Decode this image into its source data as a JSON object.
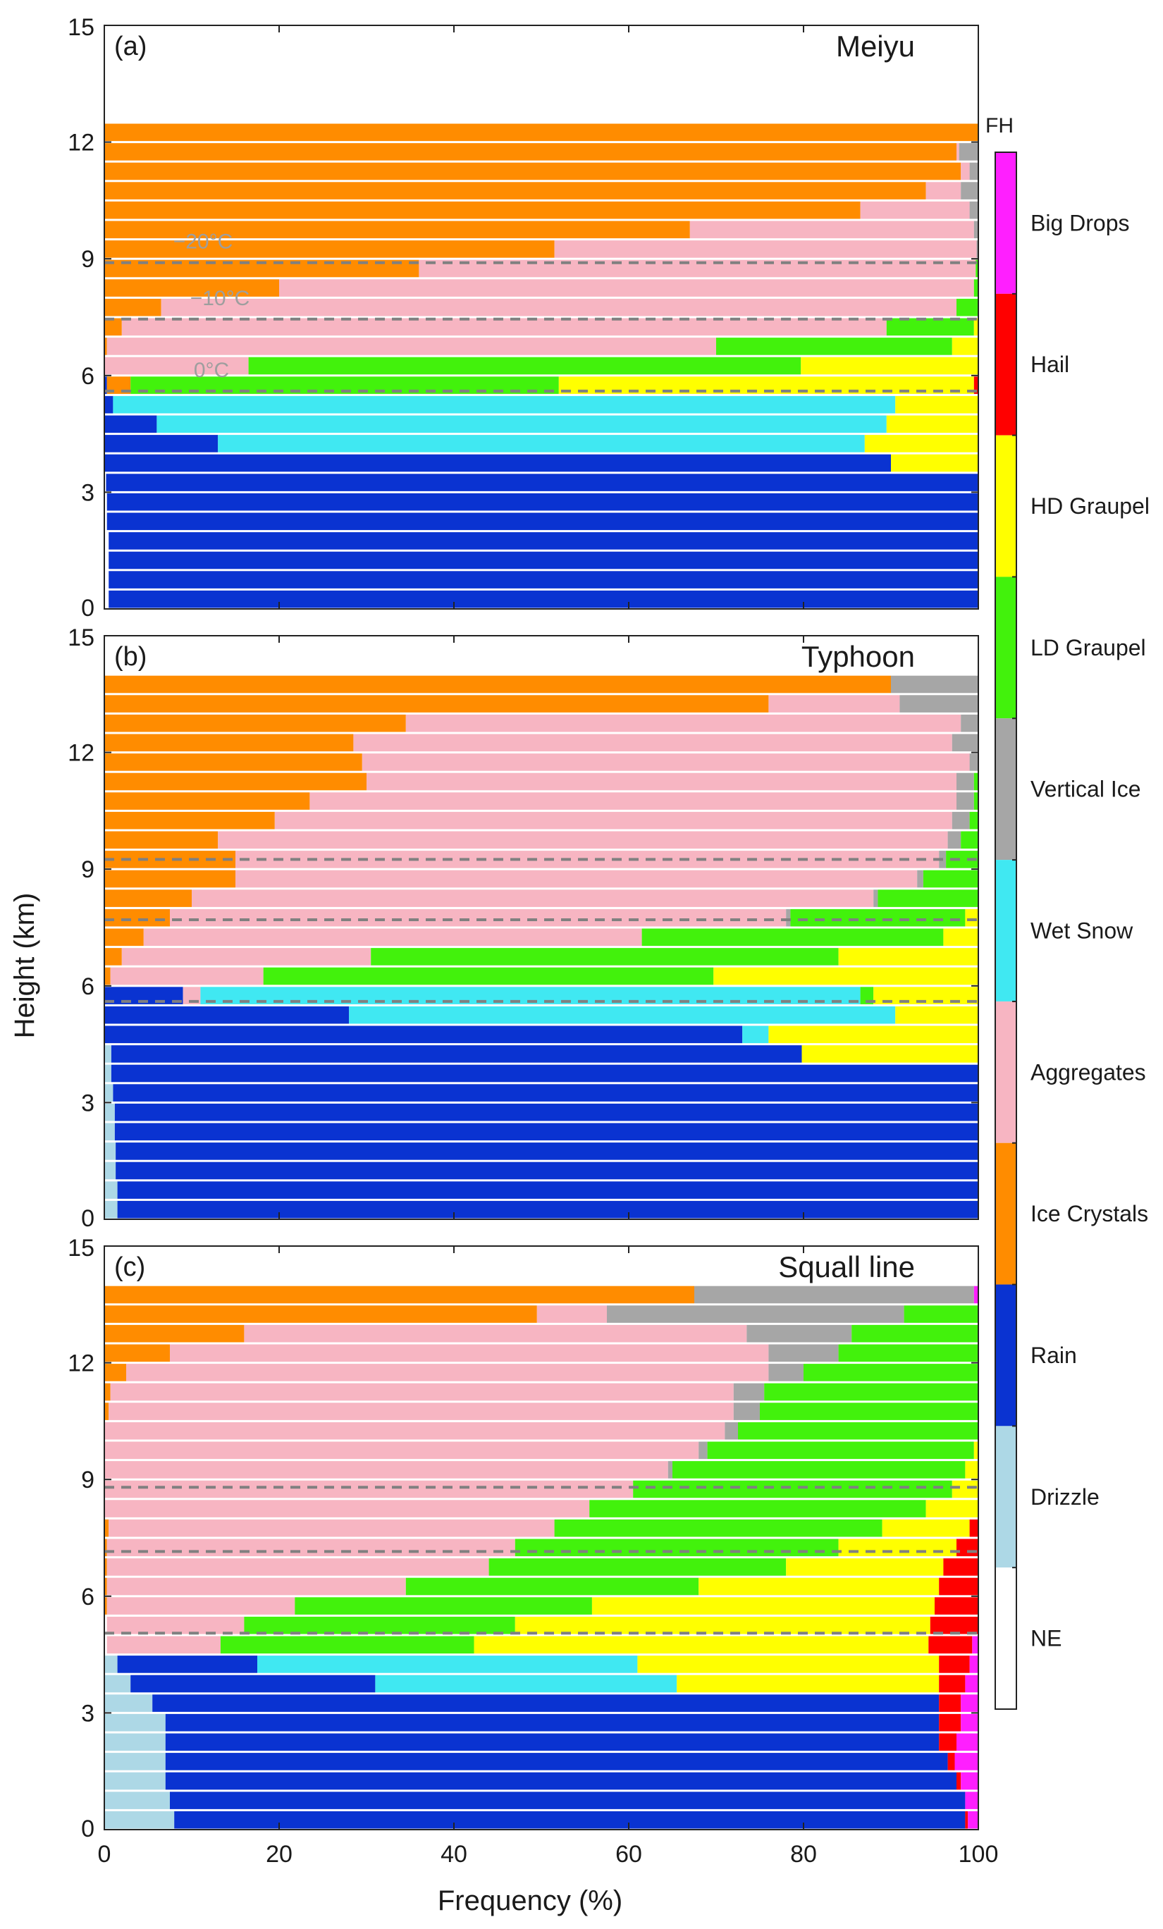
{
  "figure": {
    "ylabel": "Height (km)",
    "xlabel": "Frequency (%)",
    "fh_label": "FH"
  },
  "colors": {
    "NE": "#ffffff",
    "Drizzle": "#add8e6",
    "Rain": "#0a33d1",
    "Ice Crystals": "#ff8c00",
    "Aggregates": "#f7b5c2",
    "Wet Snow": "#40e8f2",
    "Vertical Ice": "#a6a6a6",
    "LD Graupel": "#42f20c",
    "HD Graupel": "#ffff00",
    "Hail": "#ff0000",
    "Big Drops": "#ff1fff"
  },
  "legend": [
    "Big Drops",
    "Hail",
    "HD Graupel",
    "LD Graupel",
    "Vertical Ice",
    "Wet Snow",
    "Aggregates",
    "Ice Crystals",
    "Rain",
    "Drizzle",
    "NE"
  ],
  "axes": {
    "x_ticks": [
      "0",
      "20",
      "40",
      "60",
      "80",
      "100"
    ],
    "y_ticks": [
      "0",
      "3",
      "6",
      "9",
      "12",
      "15"
    ],
    "xlim": [
      0,
      100
    ],
    "ylim": [
      0,
      15
    ]
  },
  "chart_data": [
    {
      "type": "bar",
      "orientation": "horizontal-stacked",
      "panel_label": "(a)",
      "title": "Meiyu",
      "layer_km": 0.5,
      "category_order": [
        "NE",
        "Drizzle",
        "Rain",
        "Ice Crystals",
        "Aggregates",
        "Wet Snow",
        "Vertical Ice",
        "LD Graupel",
        "HD Graupel",
        "Hail",
        "Big Drops"
      ],
      "isotherm_labels": [
        "−20°C",
        "−10°C",
        "0°C"
      ],
      "isotherm_heights_km": [
        8.9,
        7.45,
        5.6
      ],
      "layers": [
        {
          "z": 0.25,
          "NE": 0.5,
          "Rain": 99.5
        },
        {
          "z": 0.75,
          "NE": 0.5,
          "Rain": 99.5
        },
        {
          "z": 1.25,
          "NE": 0.5,
          "Rain": 99.5
        },
        {
          "z": 1.75,
          "NE": 0.5,
          "Rain": 99.5
        },
        {
          "z": 2.25,
          "NE": 0.3,
          "Rain": 99.7
        },
        {
          "z": 2.75,
          "NE": 0.3,
          "Rain": 99.7
        },
        {
          "z": 3.25,
          "NE": 0.2,
          "Rain": 99.8
        },
        {
          "z": 3.75,
          "Rain": 90.0,
          "HD Graupel": 10.0
        },
        {
          "z": 4.25,
          "Rain": 13.0,
          "Wet Snow": 74.0,
          "HD Graupel": 13.0
        },
        {
          "z": 4.75,
          "Rain": 6.0,
          "Wet Snow": 83.5,
          "HD Graupel": 10.5
        },
        {
          "z": 5.25,
          "Rain": 1.0,
          "Wet Snow": 89.5,
          "HD Graupel": 9.5
        },
        {
          "z": 5.75,
          "Rain": 0.3,
          "Ice Crystals": 2.7,
          "LD Graupel": 49.0,
          "HD Graupel": 47.5,
          "Hail": 0.5
        },
        {
          "z": 6.25,
          "Aggregates": 16.5,
          "LD Graupel": 63.2,
          "HD Graupel": 20.3
        },
        {
          "z": 6.75,
          "Ice Crystals": 0.3,
          "Aggregates": 69.7,
          "LD Graupel": 27.0,
          "HD Graupel": 3.0
        },
        {
          "z": 7.25,
          "Ice Crystals": 2.0,
          "Aggregates": 87.5,
          "LD Graupel": 10.0,
          "HD Graupel": 0.5
        },
        {
          "z": 7.75,
          "Ice Crystals": 6.5,
          "Aggregates": 91.0,
          "LD Graupel": 2.5
        },
        {
          "z": 8.25,
          "Ice Crystals": 20.0,
          "Aggregates": 79.5,
          "LD Graupel": 0.5
        },
        {
          "z": 8.75,
          "Ice Crystals": 36.0,
          "Aggregates": 63.7,
          "LD Graupel": 0.3
        },
        {
          "z": 9.25,
          "Ice Crystals": 51.5,
          "Aggregates": 48.3,
          "Vertical Ice": 0.2
        },
        {
          "z": 9.75,
          "Ice Crystals": 67.0,
          "Aggregates": 32.5,
          "Vertical Ice": 0.5
        },
        {
          "z": 10.25,
          "Ice Crystals": 86.5,
          "Aggregates": 12.5,
          "Vertical Ice": 1.0
        },
        {
          "z": 10.75,
          "Ice Crystals": 94.0,
          "Aggregates": 4.0,
          "Vertical Ice": 2.0
        },
        {
          "z": 11.25,
          "Ice Crystals": 98.0,
          "Aggregates": 1.0,
          "Vertical Ice": 1.0
        },
        {
          "z": 11.75,
          "Ice Crystals": 97.5,
          "Aggregates": 0.3,
          "Vertical Ice": 2.2
        },
        {
          "z": 12.25,
          "Ice Crystals": 100
        }
      ]
    },
    {
      "type": "bar",
      "orientation": "horizontal-stacked",
      "panel_label": "(b)",
      "title": "Typhoon",
      "layer_km": 0.5,
      "category_order": [
        "NE",
        "Drizzle",
        "Rain",
        "Ice Crystals",
        "Aggregates",
        "Wet Snow",
        "Vertical Ice",
        "LD Graupel",
        "HD Graupel",
        "Hail",
        "Big Drops"
      ],
      "isotherm_heights_km": [
        9.25,
        7.7,
        5.6
      ],
      "layers": [
        {
          "z": 0.25,
          "Drizzle": 1.5,
          "Rain": 98.5
        },
        {
          "z": 0.75,
          "Drizzle": 1.5,
          "Rain": 98.5
        },
        {
          "z": 1.25,
          "Drizzle": 1.3,
          "Rain": 98.7
        },
        {
          "z": 1.75,
          "Drizzle": 1.3,
          "Rain": 98.7
        },
        {
          "z": 2.25,
          "Drizzle": 1.2,
          "Rain": 98.8
        },
        {
          "z": 2.75,
          "Drizzle": 1.2,
          "Rain": 98.8
        },
        {
          "z": 3.25,
          "Drizzle": 1.0,
          "Rain": 99.0
        },
        {
          "z": 3.75,
          "Drizzle": 0.8,
          "Rain": 99.2
        },
        {
          "z": 4.25,
          "Drizzle": 0.8,
          "Rain": 79.0,
          "HD Graupel": 20.2
        },
        {
          "z": 4.75,
          "Rain": 73.0,
          "Wet Snow": 3.0,
          "HD Graupel": 24.0
        },
        {
          "z": 5.25,
          "Rain": 28.0,
          "Wet Snow": 62.5,
          "HD Graupel": 9.5
        },
        {
          "z": 5.75,
          "Rain": 9.0,
          "Aggregates": 2.0,
          "Wet Snow": 75.5,
          "LD Graupel": 1.5,
          "HD Graupel": 12.0
        },
        {
          "z": 6.25,
          "Ice Crystals": 0.7,
          "Aggregates": 17.5,
          "LD Graupel": 51.5,
          "HD Graupel": 30.3
        },
        {
          "z": 6.75,
          "Ice Crystals": 2.0,
          "Aggregates": 28.5,
          "LD Graupel": 53.5,
          "HD Graupel": 16.0
        },
        {
          "z": 7.25,
          "Ice Crystals": 4.5,
          "Aggregates": 57.0,
          "LD Graupel": 34.5,
          "HD Graupel": 4.0
        },
        {
          "z": 7.75,
          "Ice Crystals": 7.5,
          "Aggregates": 70.5,
          "Vertical Ice": 0.5,
          "LD Graupel": 20.0,
          "HD Graupel": 1.5
        },
        {
          "z": 8.25,
          "Ice Crystals": 10.0,
          "Aggregates": 78.0,
          "Vertical Ice": 0.5,
          "LD Graupel": 11.5
        },
        {
          "z": 8.75,
          "Ice Crystals": 15.0,
          "Aggregates": 78.0,
          "Vertical Ice": 0.7,
          "LD Graupel": 6.3
        },
        {
          "z": 9.25,
          "Ice Crystals": 15.0,
          "Aggregates": 80.5,
          "Vertical Ice": 0.8,
          "LD Graupel": 3.7
        },
        {
          "z": 9.75,
          "Ice Crystals": 13.0,
          "Aggregates": 83.5,
          "Vertical Ice": 1.5,
          "LD Graupel": 2.0
        },
        {
          "z": 10.25,
          "Ice Crystals": 19.5,
          "Aggregates": 77.5,
          "Vertical Ice": 2.0,
          "LD Graupel": 1.0
        },
        {
          "z": 10.75,
          "Ice Crystals": 23.5,
          "Aggregates": 74.0,
          "Vertical Ice": 2.0,
          "LD Graupel": 0.5
        },
        {
          "z": 11.25,
          "Ice Crystals": 30.0,
          "Aggregates": 67.5,
          "Vertical Ice": 2.0,
          "LD Graupel": 0.5
        },
        {
          "z": 11.75,
          "Ice Crystals": 29.5,
          "Aggregates": 69.5,
          "Vertical Ice": 1.0
        },
        {
          "z": 12.25,
          "Ice Crystals": 28.5,
          "Aggregates": 68.5,
          "Vertical Ice": 3.0
        },
        {
          "z": 12.75,
          "Ice Crystals": 34.5,
          "Aggregates": 63.5,
          "Vertical Ice": 2.0
        },
        {
          "z": 13.25,
          "Ice Crystals": 76.0,
          "Aggregates": 15.0,
          "Vertical Ice": 9.0
        },
        {
          "z": 13.75,
          "Ice Crystals": 90.0,
          "Vertical Ice": 10.0
        }
      ]
    },
    {
      "type": "bar",
      "orientation": "horizontal-stacked",
      "panel_label": "(c)",
      "title": "Squall line",
      "layer_km": 0.5,
      "category_order": [
        "NE",
        "Drizzle",
        "Rain",
        "Ice Crystals",
        "Aggregates",
        "Wet Snow",
        "Vertical Ice",
        "LD Graupel",
        "HD Graupel",
        "Hail",
        "Big Drops"
      ],
      "isotherm_heights_km": [
        8.8,
        7.15,
        5.05
      ],
      "layers": [
        {
          "z": 0.25,
          "Drizzle": 8.0,
          "Rain": 90.5,
          "Hail": 0.3,
          "Big Drops": 1.2
        },
        {
          "z": 0.75,
          "Drizzle": 7.5,
          "Rain": 91.0,
          "Big Drops": 1.5
        },
        {
          "z": 1.25,
          "Drizzle": 7.0,
          "Rain": 90.5,
          "Hail": 0.5,
          "Big Drops": 2.0
        },
        {
          "z": 1.75,
          "Drizzle": 7.0,
          "Rain": 89.5,
          "Hail": 0.8,
          "Big Drops": 2.7
        },
        {
          "z": 2.25,
          "Drizzle": 7.0,
          "Rain": 88.5,
          "Hail": 2.0,
          "Big Drops": 2.5
        },
        {
          "z": 2.75,
          "Drizzle": 7.0,
          "Rain": 88.5,
          "Hail": 2.5,
          "Big Drops": 2.0
        },
        {
          "z": 3.25,
          "Drizzle": 5.5,
          "Rain": 90.0,
          "Hail": 2.5,
          "Big Drops": 2.0
        },
        {
          "z": 3.75,
          "Drizzle": 3.0,
          "Rain": 28.0,
          "Wet Snow": 34.5,
          "HD Graupel": 30.0,
          "Hail": 3.0,
          "Big Drops": 1.5
        },
        {
          "z": 4.25,
          "Drizzle": 1.5,
          "Rain": 16.0,
          "Wet Snow": 43.5,
          "HD Graupel": 34.5,
          "Hail": 3.5,
          "Big Drops": 1.0
        },
        {
          "z": 4.75,
          "NE": 0.3,
          "Aggregates": 13.0,
          "LD Graupel": 29.0,
          "HD Graupel": 52.0,
          "Hail": 5.0,
          "Big Drops": 0.7
        },
        {
          "z": 5.25,
          "NE": 0.3,
          "Aggregates": 15.7,
          "LD Graupel": 31.0,
          "HD Graupel": 47.5,
          "Hail": 5.5
        },
        {
          "z": 5.75,
          "Ice Crystals": 0.3,
          "Aggregates": 21.5,
          "LD Graupel": 34.0,
          "HD Graupel": 39.2,
          "Hail": 5.0
        },
        {
          "z": 6.25,
          "Ice Crystals": 0.3,
          "Aggregates": 34.2,
          "LD Graupel": 33.5,
          "HD Graupel": 27.5,
          "Hail": 4.5
        },
        {
          "z": 6.75,
          "Ice Crystals": 0.3,
          "Aggregates": 43.7,
          "LD Graupel": 34.0,
          "HD Graupel": 18.0,
          "Hail": 4.0
        },
        {
          "z": 7.25,
          "Ice Crystals": 0.3,
          "Aggregates": 46.7,
          "LD Graupel": 37.0,
          "HD Graupel": 13.5,
          "Hail": 2.5
        },
        {
          "z": 7.75,
          "Ice Crystals": 0.5,
          "Aggregates": 51.0,
          "LD Graupel": 37.5,
          "HD Graupel": 10.0,
          "Hail": 1.0
        },
        {
          "z": 8.25,
          "Aggregates": 55.5,
          "LD Graupel": 38.5,
          "HD Graupel": 6.0
        },
        {
          "z": 8.75,
          "Aggregates": 60.5,
          "LD Graupel": 36.5,
          "HD Graupel": 3.0
        },
        {
          "z": 9.25,
          "Aggregates": 64.5,
          "Vertical Ice": 0.5,
          "LD Graupel": 33.5,
          "HD Graupel": 1.5
        },
        {
          "z": 9.75,
          "Aggregates": 68.0,
          "Vertical Ice": 1.0,
          "LD Graupel": 30.5,
          "HD Graupel": 0.5
        },
        {
          "z": 10.25,
          "Aggregates": 71.0,
          "Vertical Ice": 1.5,
          "LD Graupel": 27.5
        },
        {
          "z": 10.75,
          "Ice Crystals": 0.5,
          "Aggregates": 71.5,
          "Vertical Ice": 3.0,
          "LD Graupel": 25.0
        },
        {
          "z": 11.25,
          "Ice Crystals": 0.7,
          "Aggregates": 71.3,
          "Vertical Ice": 3.5,
          "LD Graupel": 24.5
        },
        {
          "z": 11.75,
          "Ice Crystals": 2.5,
          "Aggregates": 73.5,
          "Vertical Ice": 4.0,
          "LD Graupel": 20.0
        },
        {
          "z": 12.25,
          "Ice Crystals": 7.5,
          "Aggregates": 68.5,
          "Vertical Ice": 8.0,
          "LD Graupel": 16.0
        },
        {
          "z": 12.75,
          "Ice Crystals": 16.0,
          "Aggregates": 57.5,
          "Vertical Ice": 12.0,
          "LD Graupel": 14.5
        },
        {
          "z": 13.25,
          "Ice Crystals": 49.5,
          "Aggregates": 8.0,
          "Vertical Ice": 34.0,
          "LD Graupel": 8.5
        },
        {
          "z": 13.75,
          "Ice Crystals": 67.5,
          "Vertical Ice": 32.0,
          "Big Drops": 0.5
        }
      ]
    }
  ]
}
